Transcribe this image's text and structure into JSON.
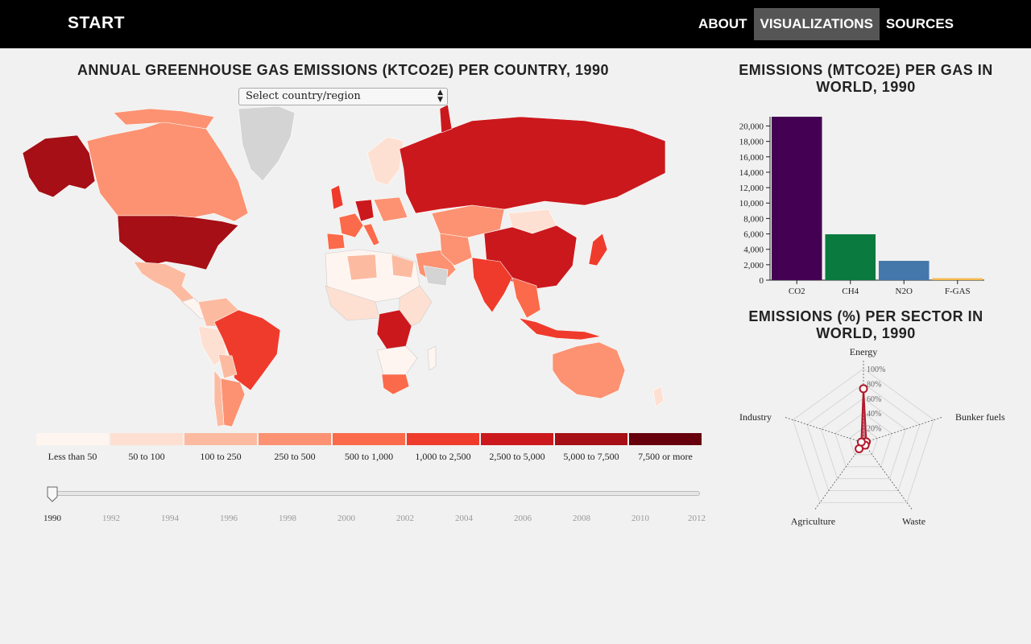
{
  "nav": {
    "brand": "START",
    "links": [
      "ABOUT",
      "VISUALIZATIONS",
      "SOURCES"
    ],
    "active": "VISUALIZATIONS"
  },
  "map_panel": {
    "title": "ANNUAL GREENHOUSE GAS EMISSIONS (KTCO2E) PER COUNTRY, 1990",
    "select": {
      "value": "Select country/region"
    },
    "legend": {
      "labels": [
        "Less than 50",
        "50 to 100",
        "100 to 250",
        "250 to 500",
        "500 to 1,000",
        "1,000 to 2,500",
        "2,500 to 5,000",
        "5,000 to 7,500",
        "7,500 or more"
      ],
      "colors": [
        "#fff5f0",
        "#fee0d2",
        "#fcbba1",
        "#fc9272",
        "#fb6a4a",
        "#ef3b2c",
        "#cb181d",
        "#a50f15",
        "#67000d"
      ]
    },
    "slider": {
      "years": [
        "1990",
        "1992",
        "1994",
        "1996",
        "1998",
        "2000",
        "2002",
        "2004",
        "2006",
        "2008",
        "2010",
        "2012"
      ],
      "selected": "1990"
    }
  },
  "gas_panel": {
    "title_line1": "EMISSIONS (MTCO2E) PER GAS IN",
    "title_line2": "WORLD, 1990"
  },
  "sector_panel": {
    "title_line1": "EMISSIONS (%) PER SECTOR IN",
    "title_line2": "WORLD, 1990"
  },
  "chart_data": [
    {
      "type": "bar",
      "title": "EMISSIONS (MTCO2E) PER GAS IN WORLD, 1990",
      "categories": [
        "CO2",
        "CH4",
        "N2O",
        "F-GAS"
      ],
      "values": [
        21200,
        5950,
        2500,
        250
      ],
      "colors": [
        "#440154",
        "#0a7a3e",
        "#4477aa",
        "#f5b94f"
      ],
      "ylim": [
        0,
        21200
      ],
      "yticks": [
        "0",
        "2,000",
        "4,000",
        "6,000",
        "8,000",
        "10,000",
        "12,000",
        "14,000",
        "16,000",
        "18,000",
        "20,000"
      ],
      "grid": false
    },
    {
      "type": "radar",
      "title": "EMISSIONS (%) PER SECTOR IN WORLD, 1990",
      "axes": [
        "Energy",
        "Bunker fuels",
        "Waste",
        "Agriculture",
        "Industry"
      ],
      "values": [
        73,
        4,
        4,
        10,
        3
      ],
      "rticks": [
        "20%",
        "40%",
        "60%",
        "80%",
        "100%"
      ],
      "color": "#b2182b"
    }
  ]
}
